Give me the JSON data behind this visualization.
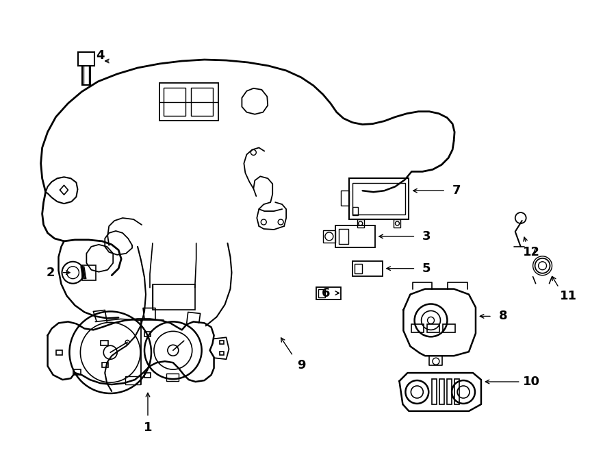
{
  "bg_color": "#ffffff",
  "line_color": "#000000",
  "line_width": 1.2,
  "fig_width": 9.0,
  "fig_height": 6.61,
  "dpi": 100
}
